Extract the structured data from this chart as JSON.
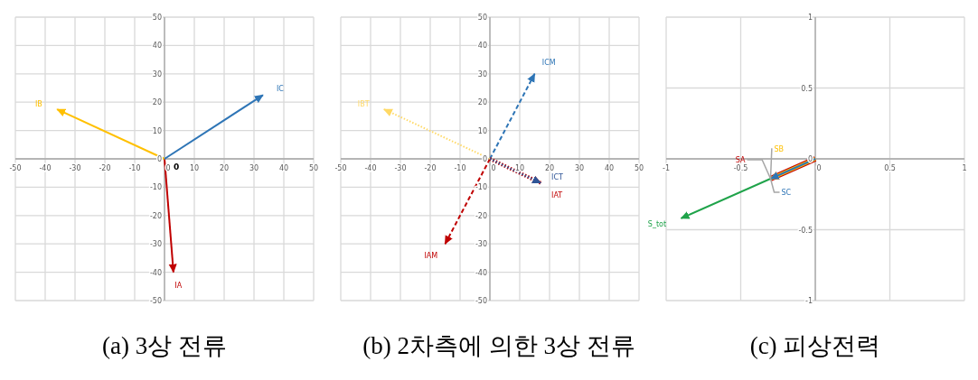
{
  "chart_data": [
    {
      "type": "line",
      "title": "(a) 3상 전류",
      "xlim": [
        -50,
        50
      ],
      "ylim": [
        -50,
        50
      ],
      "xticks": [
        -50,
        -40,
        -30,
        -20,
        -10,
        0,
        10,
        20,
        30,
        40,
        50
      ],
      "yticks": [
        -50,
        -40,
        -30,
        -20,
        -10,
        0,
        10,
        20,
        30,
        40,
        50
      ],
      "grid": true,
      "annotations": [
        {
          "text": "0",
          "x": 0,
          "y": 0
        }
      ],
      "series": [
        {
          "name": "IA",
          "color": "#c00000",
          "x": [
            0,
            3
          ],
          "values": [
            0,
            -40
          ],
          "line_style": "solid"
        },
        {
          "name": "IB",
          "color": "#ffc000",
          "x": [
            0,
            -36
          ],
          "values": [
            0,
            17.5
          ],
          "line_style": "solid"
        },
        {
          "name": "IC",
          "color": "#2e75b6",
          "x": [
            0,
            33
          ],
          "values": [
            0,
            22.5
          ],
          "line_style": "solid"
        }
      ]
    },
    {
      "type": "line",
      "title": "(b) 2차측에 의한 3상 전류",
      "xlim": [
        -50,
        50
      ],
      "ylim": [
        -50,
        50
      ],
      "xticks": [
        -50,
        -40,
        -30,
        -20,
        -10,
        0,
        10,
        20,
        30,
        40,
        50
      ],
      "yticks": [
        -50,
        -40,
        -30,
        -20,
        -10,
        0,
        10,
        20,
        30,
        40,
        50
      ],
      "grid": true,
      "series": [
        {
          "name": "ICM",
          "color": "#2e75b6",
          "x": [
            0,
            15
          ],
          "values": [
            0,
            30
          ],
          "line_style": "dashed"
        },
        {
          "name": "IAM",
          "color": "#c00000",
          "x": [
            0,
            -15
          ],
          "values": [
            0,
            -30
          ],
          "line_style": "dashed"
        },
        {
          "name": "IBT",
          "color": "#ffd966",
          "x": [
            0,
            -35.5
          ],
          "values": [
            0,
            17.5
          ],
          "line_style": "dotted"
        },
        {
          "name": "IAT",
          "color": "#c00000",
          "x": [
            0,
            17
          ],
          "values": [
            0,
            -8.5
          ],
          "line_style": "dotted"
        },
        {
          "name": "ICT",
          "color": "#2f5597",
          "x": [
            0,
            17
          ],
          "values": [
            0,
            -8.5
          ],
          "line_style": "dotted"
        }
      ]
    },
    {
      "type": "line",
      "title": "(c) 피상전력",
      "xlim": [
        -1,
        1
      ],
      "ylim": [
        -1,
        1
      ],
      "xticks": [
        -1,
        -0.5,
        0,
        0.5,
        1
      ],
      "yticks": [
        -1,
        -0.5,
        0,
        0.5,
        1
      ],
      "grid": true,
      "series": [
        {
          "name": "S_tot",
          "color": "#1fa34a",
          "x": [
            0,
            -0.9
          ],
          "values": [
            0,
            -0.42
          ],
          "line_style": "solid"
        },
        {
          "name": "SA",
          "color": "#c00000",
          "x": [
            0,
            -0.3
          ],
          "values": [
            0,
            -0.14
          ],
          "line_style": "solid"
        },
        {
          "name": "SB",
          "color": "#ffc000",
          "x": [
            0,
            -0.3
          ],
          "values": [
            0,
            -0.14
          ],
          "line_style": "solid"
        },
        {
          "name": "SC",
          "color": "#2e75b6",
          "x": [
            0,
            -0.3
          ],
          "values": [
            0,
            -0.14
          ],
          "line_style": "solid"
        }
      ]
    }
  ]
}
